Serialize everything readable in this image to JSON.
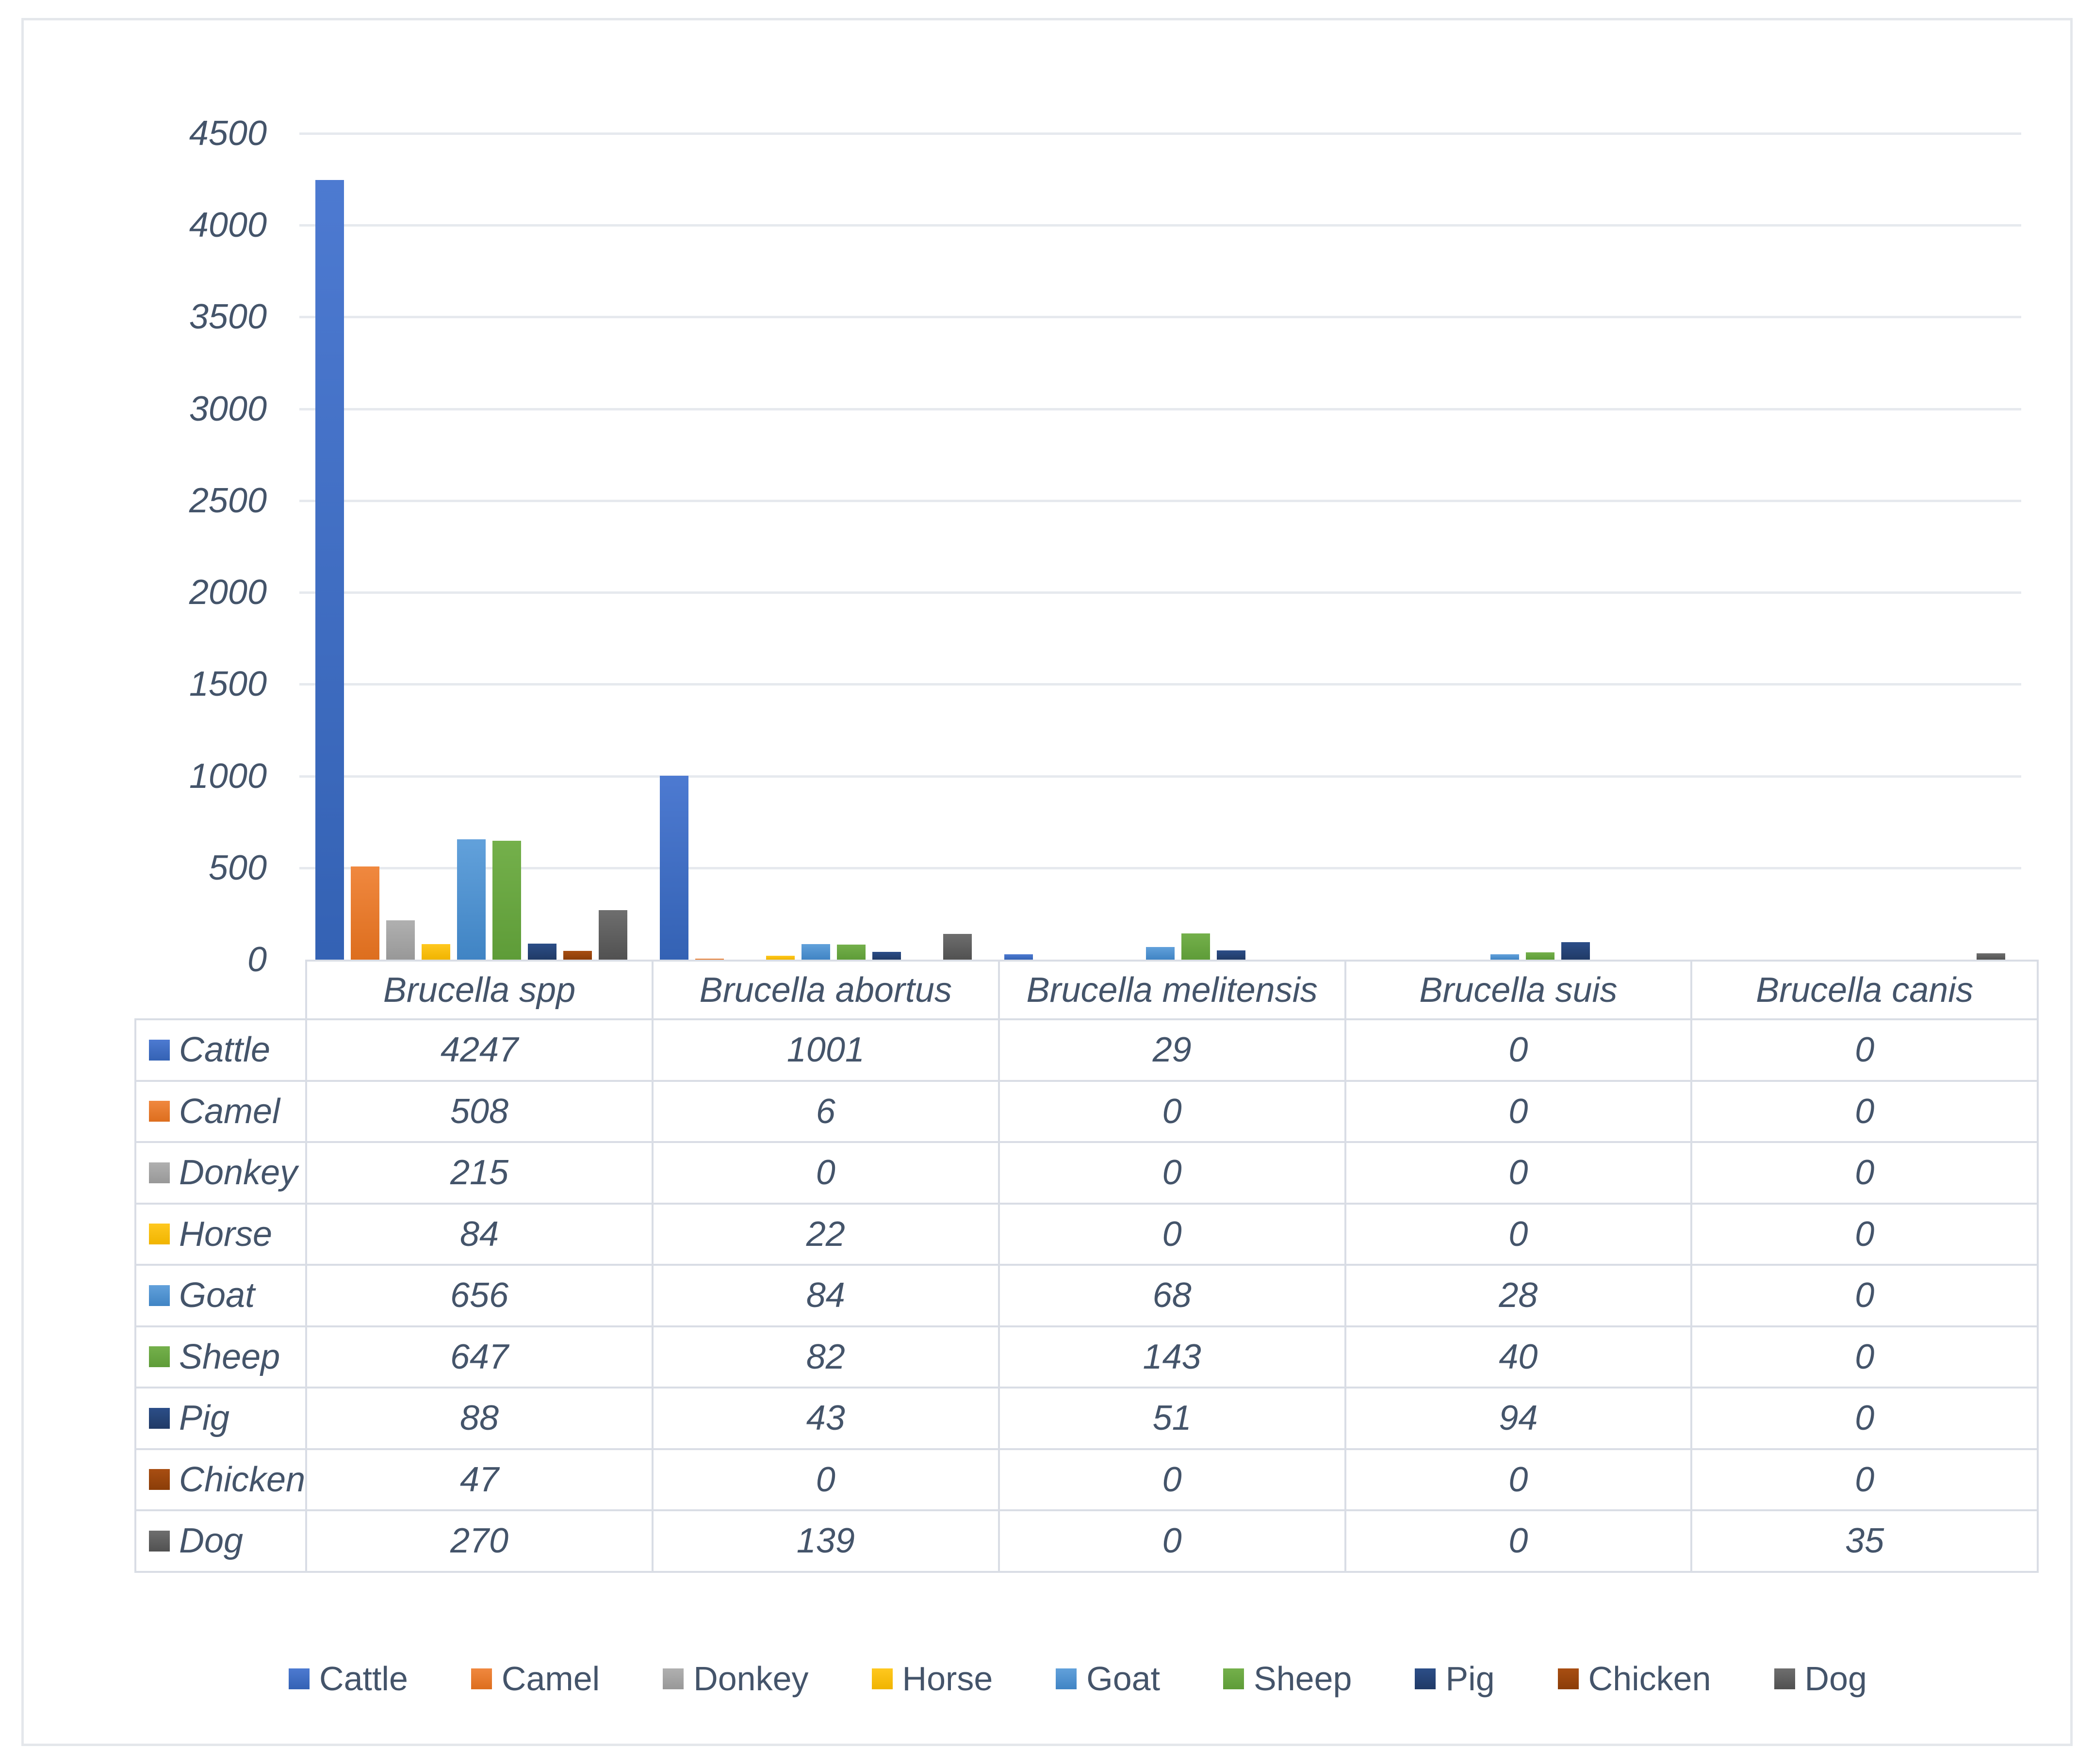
{
  "chart_data": {
    "type": "bar",
    "title": "",
    "categories": [
      "Brucella spp",
      "Brucella abortus",
      "Brucella melitensis",
      "Brucella suis",
      "Brucella canis"
    ],
    "series": [
      {
        "name": "Cattle",
        "values": [
          4247,
          1001,
          29,
          0,
          0
        ],
        "color": "#4472C4",
        "color_light": "#4D7AD1",
        "color_dark": "#3462B4"
      },
      {
        "name": "Camel",
        "values": [
          508,
          6,
          0,
          0,
          0
        ],
        "color": "#ED7D31",
        "color_light": "#F0883F",
        "color_dark": "#DD6E1E"
      },
      {
        "name": "Donkey",
        "values": [
          215,
          0,
          0,
          0,
          0
        ],
        "color": "#A5A5A5",
        "color_light": "#B0B0B0",
        "color_dark": "#989898"
      },
      {
        "name": "Horse",
        "values": [
          84,
          22,
          0,
          0,
          0
        ],
        "color": "#FFC000",
        "color_light": "#FFC81F",
        "color_dark": "#F0B400"
      },
      {
        "name": "Goat",
        "values": [
          656,
          84,
          68,
          28,
          0
        ],
        "color": "#5B9BD5",
        "color_light": "#62A1DB",
        "color_dark": "#4084C4"
      },
      {
        "name": "Sheep",
        "values": [
          647,
          82,
          143,
          40,
          0
        ],
        "color": "#70AD47",
        "color_light": "#74B04B",
        "color_dark": "#5E9C38"
      },
      {
        "name": "Pig",
        "values": [
          88,
          43,
          51,
          94,
          0
        ],
        "color": "#264478",
        "color_light": "#2C4E88",
        "color_dark": "#203A66"
      },
      {
        "name": "Chicken",
        "values": [
          47,
          0,
          0,
          0,
          0
        ],
        "color": "#9E480E",
        "color_light": "#A84E12",
        "color_dark": "#8B3D08"
      },
      {
        "name": "Dog",
        "values": [
          270,
          139,
          0,
          0,
          35
        ],
        "color": "#636363",
        "color_light": "#6E6E6E",
        "color_dark": "#515151"
      }
    ],
    "xlabel": "",
    "ylabel": "",
    "ylim": [
      0,
      4500
    ],
    "ytick_step": 500,
    "grid": true,
    "legend_position": "bottom",
    "data_table_shown": true
  },
  "colors": {
    "text": "#44546A",
    "gridline": "#E6E9EE",
    "table_border": "#D9DDE5",
    "background": "#FFFFFF"
  }
}
